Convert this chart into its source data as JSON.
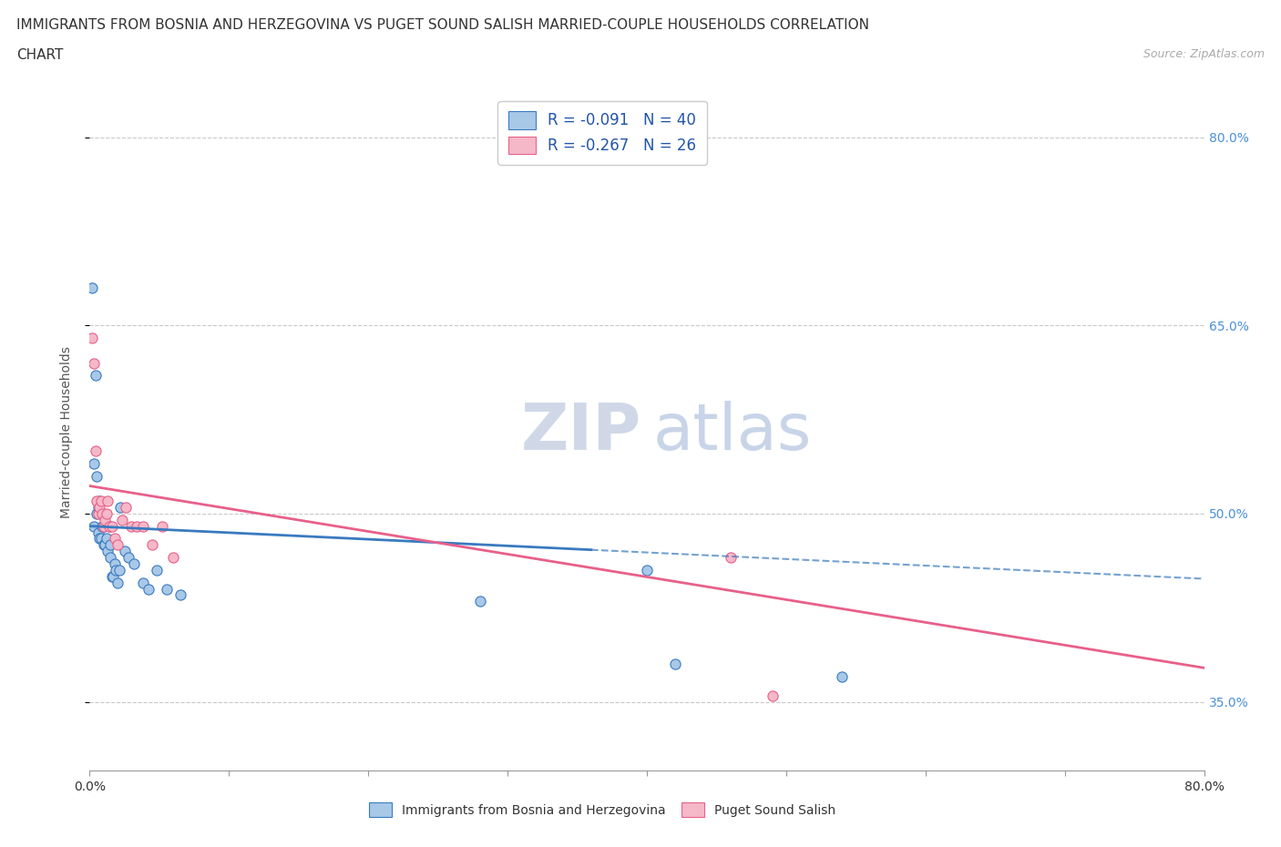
{
  "title_line1": "IMMIGRANTS FROM BOSNIA AND HERZEGOVINA VS PUGET SOUND SALISH MARRIED-COUPLE HOUSEHOLDS CORRELATION",
  "title_line2": "CHART",
  "source_text": "Source: ZipAtlas.com",
  "watermark_zip": "ZIP",
  "watermark_atlas": "atlas",
  "xlabel": "",
  "ylabel": "Married-couple Households",
  "xlim": [
    0.0,
    0.8
  ],
  "ylim": [
    0.295,
    0.835
  ],
  "xticks": [
    0.0,
    0.1,
    0.2,
    0.3,
    0.4,
    0.5,
    0.6,
    0.7,
    0.8
  ],
  "xticklabels_show": [
    "0.0%",
    "",
    "",
    "",
    "",
    "",
    "",
    "",
    "80.0%"
  ],
  "yticks_right": [
    0.35,
    0.5,
    0.65,
    0.8
  ],
  "ytick_right_labels": [
    "35.0%",
    "50.0%",
    "65.0%",
    "80.0%"
  ],
  "series1_color": "#a8c8e8",
  "series2_color": "#f5b8c8",
  "series1_line_color": "#3a7abf",
  "series2_line_color": "#e8608a",
  "legend_label1": "R = -0.091   N = 40",
  "legend_label2": "R = -0.267   N = 26",
  "legend_r1": "R = -0.091",
  "legend_n1": "N = 40",
  "legend_r2": "R = -0.267",
  "legend_n2": "N = 26",
  "grid_color": "#bbbbbb",
  "background_color": "#ffffff",
  "series1_x": [
    0.002,
    0.003,
    0.003,
    0.004,
    0.005,
    0.005,
    0.006,
    0.006,
    0.007,
    0.007,
    0.008,
    0.008,
    0.009,
    0.01,
    0.01,
    0.011,
    0.012,
    0.013,
    0.014,
    0.015,
    0.015,
    0.016,
    0.017,
    0.018,
    0.019,
    0.02,
    0.021,
    0.022,
    0.025,
    0.028,
    0.032,
    0.038,
    0.042,
    0.048,
    0.055,
    0.065,
    0.28,
    0.4,
    0.42,
    0.54
  ],
  "series1_y": [
    0.68,
    0.54,
    0.49,
    0.61,
    0.5,
    0.53,
    0.485,
    0.505,
    0.51,
    0.48,
    0.48,
    0.5,
    0.49,
    0.49,
    0.475,
    0.475,
    0.48,
    0.47,
    0.49,
    0.465,
    0.475,
    0.45,
    0.45,
    0.46,
    0.455,
    0.445,
    0.455,
    0.505,
    0.47,
    0.465,
    0.46,
    0.445,
    0.44,
    0.455,
    0.44,
    0.435,
    0.43,
    0.455,
    0.38,
    0.37
  ],
  "series2_x": [
    0.002,
    0.003,
    0.004,
    0.005,
    0.006,
    0.007,
    0.008,
    0.009,
    0.01,
    0.011,
    0.012,
    0.013,
    0.014,
    0.016,
    0.018,
    0.02,
    0.023,
    0.026,
    0.03,
    0.034,
    0.038,
    0.045,
    0.052,
    0.06,
    0.46,
    0.49
  ],
  "series2_y": [
    0.64,
    0.62,
    0.55,
    0.51,
    0.5,
    0.505,
    0.51,
    0.5,
    0.49,
    0.495,
    0.5,
    0.51,
    0.49,
    0.49,
    0.48,
    0.475,
    0.495,
    0.505,
    0.49,
    0.49,
    0.49,
    0.475,
    0.49,
    0.465,
    0.465,
    0.355
  ],
  "trend1_x": [
    0.0,
    0.8
  ],
  "trend1_y": [
    0.49,
    0.448
  ],
  "trend1_solid_end": 0.36,
  "trend1_dashed_start": 0.36,
  "trend2_x": [
    0.0,
    0.8
  ],
  "trend2_y": [
    0.522,
    0.377
  ],
  "title_fontsize": 11,
  "source_fontsize": 9,
  "axis_label_fontsize": 10,
  "tick_fontsize": 10,
  "legend_fontsize": 12,
  "watermark_fontsize_zip": 52,
  "watermark_fontsize_atlas": 52
}
